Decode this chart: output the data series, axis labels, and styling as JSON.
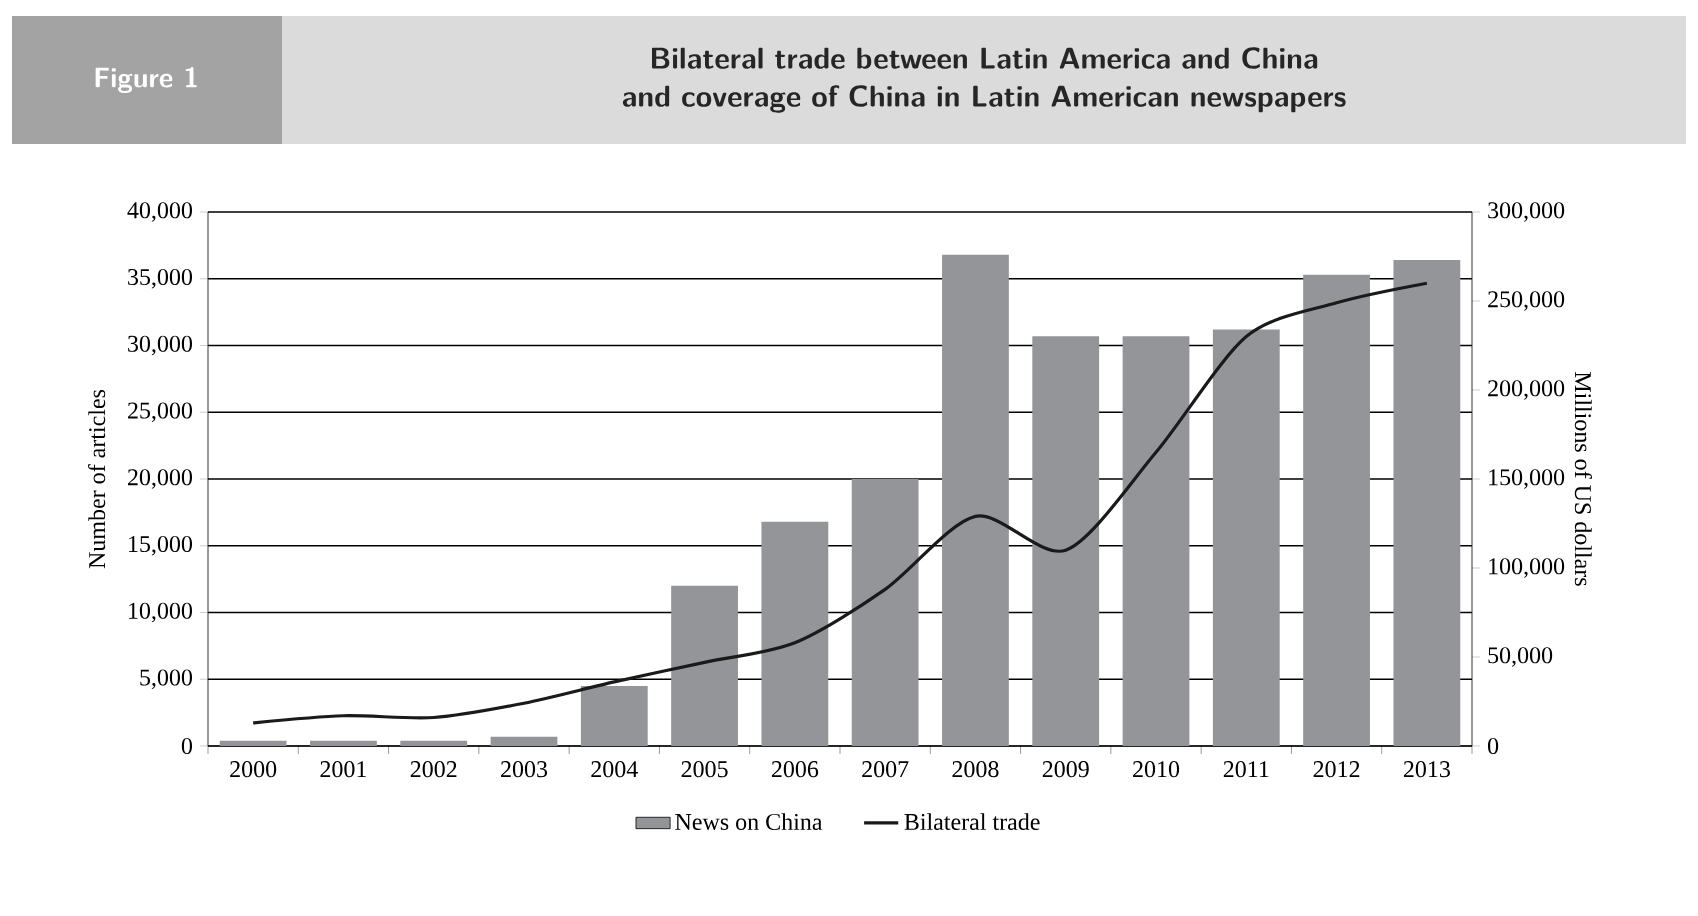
{
  "chart_data": {
    "type": "bar",
    "title": "Bilateral trade between Latin America and China and coverage of China in Latin American newspapers",
    "annotations": [
      "Figure 1"
    ],
    "ylabel": "Number of articles",
    "y2label": "Millions of US dollars",
    "categories": [
      "2000",
      "2001",
      "2002",
      "2003",
      "2004",
      "2005",
      "2006",
      "2007",
      "2008",
      "2009",
      "2010",
      "2011",
      "2012",
      "2013"
    ],
    "series": [
      {
        "name": "News on China",
        "color": "#939598",
        "values": [
          400,
          400,
          400,
          700,
          4500,
          12000,
          16800,
          20000,
          36800,
          30700,
          30700,
          31200,
          35300,
          36400
        ]
      },
      {
        "name": "Bilateral trade",
        "type": "line",
        "axis": "y2",
        "color": "#1a1a1a",
        "values": [
          13000,
          17000,
          16000,
          24000,
          36000,
          47000,
          58000,
          88000,
          129000,
          110000,
          165000,
          230000,
          249000,
          260000
        ]
      }
    ],
    "ylim": [
      0,
      40000
    ],
    "yticks": [
      0,
      {
        "value": 5000,
        "label": "5,000"
      },
      {
        "value": 10000,
        "label": "10,000"
      },
      {
        "value": 15000,
        "label": "15,000"
      },
      {
        "value": 20000,
        "label": "20,000"
      },
      {
        "value": 25000,
        "label": "25,000"
      },
      {
        "value": 30000,
        "label": "30,000"
      },
      {
        "value": 35000,
        "label": "35,000"
      },
      {
        "value": 40000,
        "label": "40,000"
      }
    ],
    "y2lim": [
      0,
      300000
    ],
    "y2ticks": [
      0,
      {
        "value": 50000,
        "label": "50,000"
      },
      {
        "value": 100000,
        "label": "100,000"
      },
      {
        "value": 150000,
        "label": "150,000"
      },
      {
        "value": 200000,
        "label": "200,000"
      },
      {
        "value": 250000,
        "label": "250,000"
      },
      {
        "value": 300000,
        "label": "300,000"
      }
    ],
    "grid": "y",
    "legend": "bottom"
  }
}
